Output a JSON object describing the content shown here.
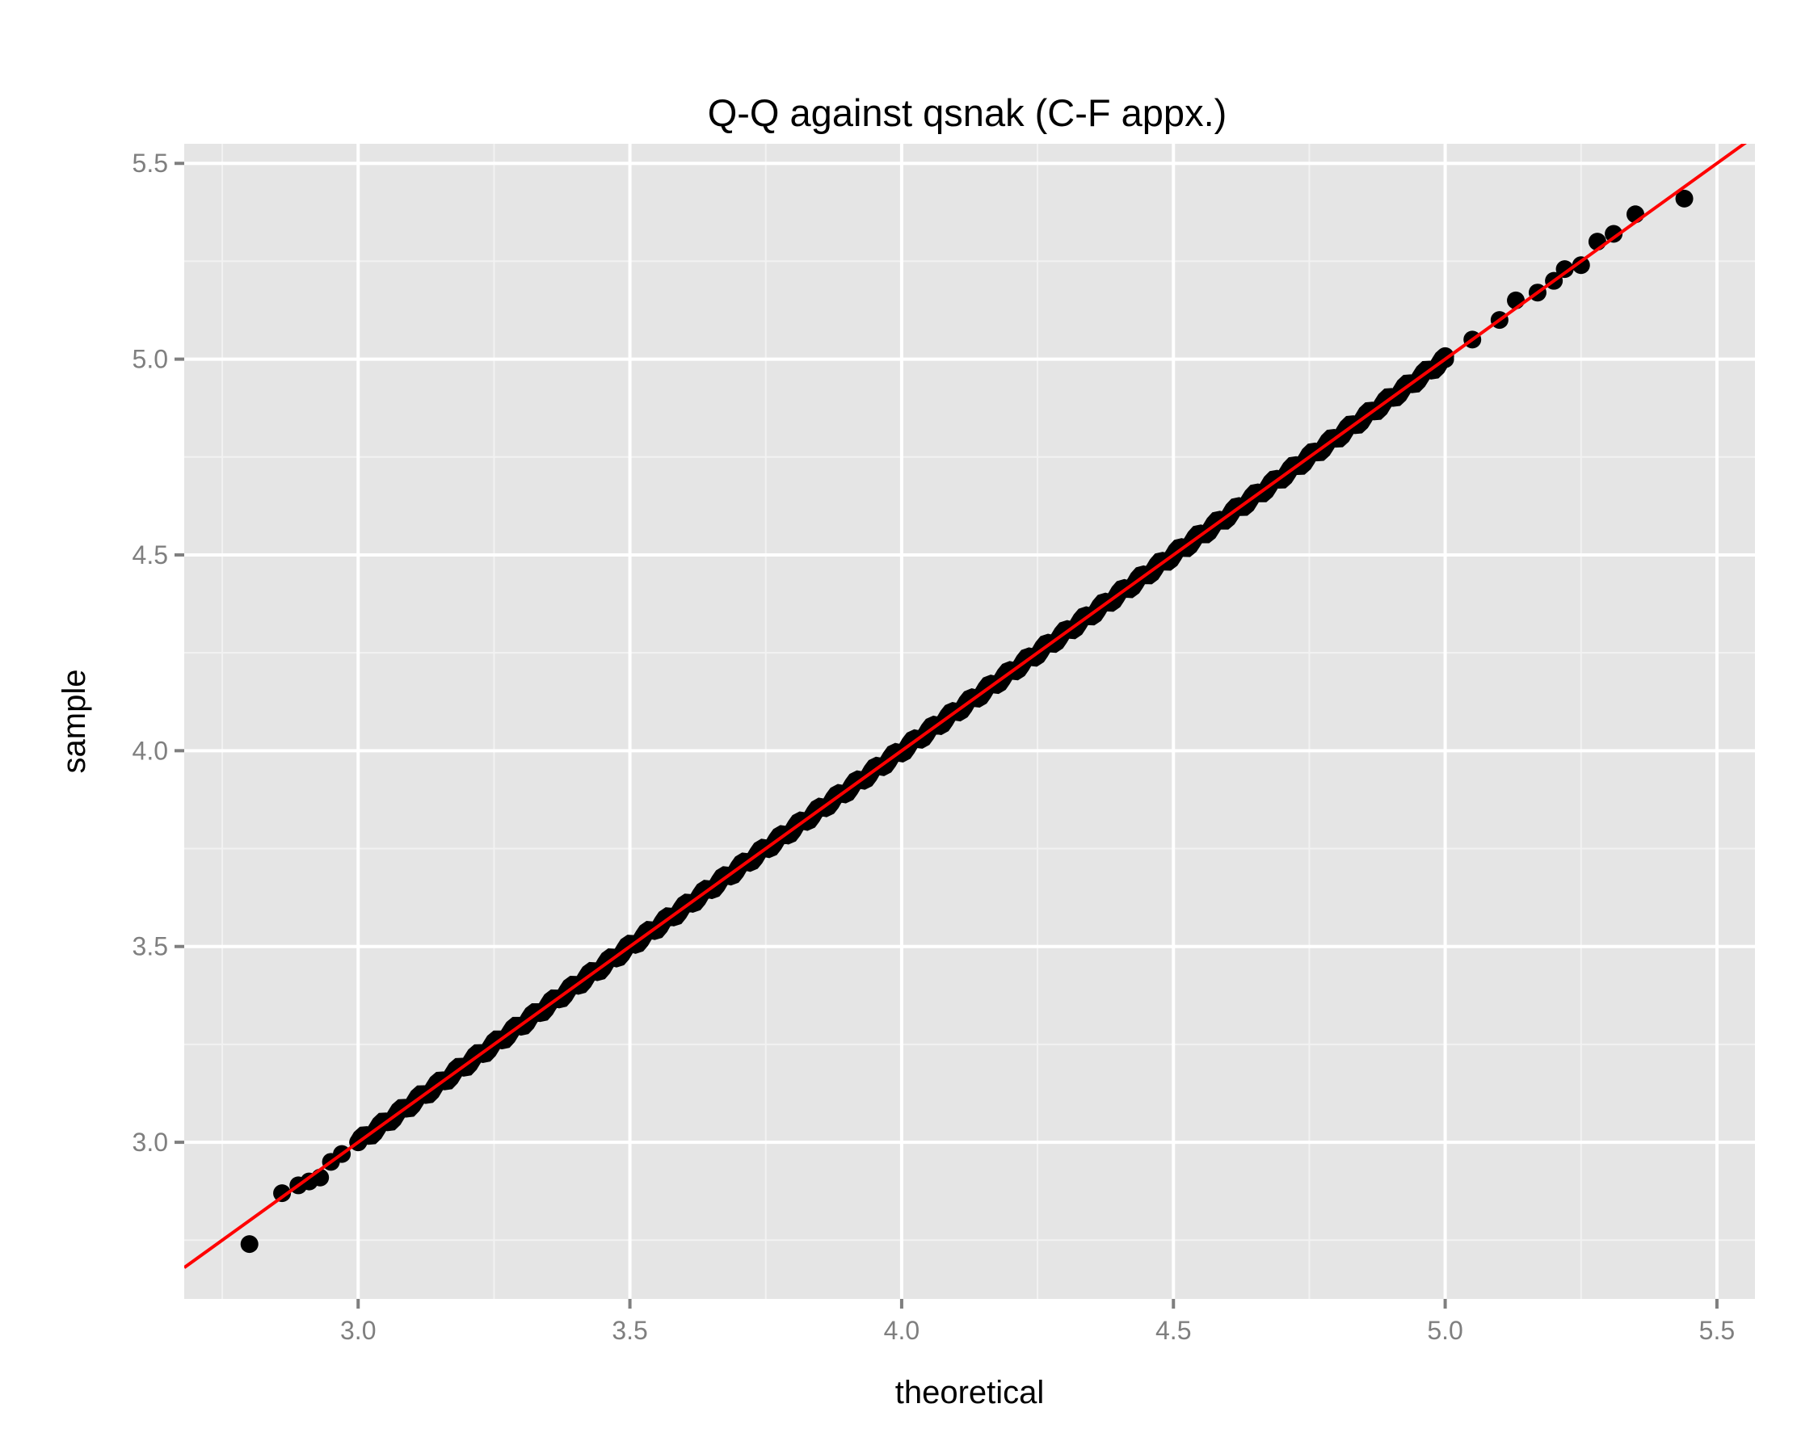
{
  "chart_data": {
    "type": "scatter",
    "title": "Q-Q against qsnak (C-F appx.)",
    "xlabel": "theoretical",
    "ylabel": "sample",
    "xlim": [
      2.68,
      5.57
    ],
    "ylim": [
      2.6,
      5.55
    ],
    "x_ticks": [
      "3.0",
      "3.5",
      "4.0",
      "4.5",
      "5.0",
      "5.5"
    ],
    "y_ticks": [
      "3.0",
      "3.5",
      "4.0",
      "4.5",
      "5.0",
      "5.5"
    ],
    "grid": true,
    "legend": "none",
    "colors": {
      "panel": "#e5e5e5",
      "grid_major": "#ffffff",
      "grid_minor": "#f2f2f2",
      "points": "#000000",
      "reference_line": "#ff0000",
      "tick_label": "#7f7f7f"
    },
    "reference_line": {
      "intercept": 0,
      "slope": 1
    },
    "series": [
      {
        "points": [
          [
            2.8,
            2.74
          ],
          [
            2.86,
            2.87
          ],
          [
            2.89,
            2.89
          ],
          [
            2.91,
            2.9
          ],
          [
            2.93,
            2.91
          ],
          [
            2.95,
            2.95
          ],
          [
            2.97,
            2.97
          ],
          [
            3.0,
            3.0
          ],
          [
            5.0,
            5.0
          ],
          [
            5.05,
            5.05
          ],
          [
            5.1,
            5.1
          ],
          [
            5.13,
            5.15
          ],
          [
            5.17,
            5.17
          ],
          [
            5.2,
            5.2
          ],
          [
            5.22,
            5.23
          ],
          [
            5.25,
            5.24
          ],
          [
            5.28,
            5.3
          ],
          [
            5.31,
            5.32
          ],
          [
            5.35,
            5.37
          ],
          [
            5.44,
            5.41
          ]
        ],
        "dense_band": [
          3.0,
          5.0
        ]
      }
    ]
  }
}
